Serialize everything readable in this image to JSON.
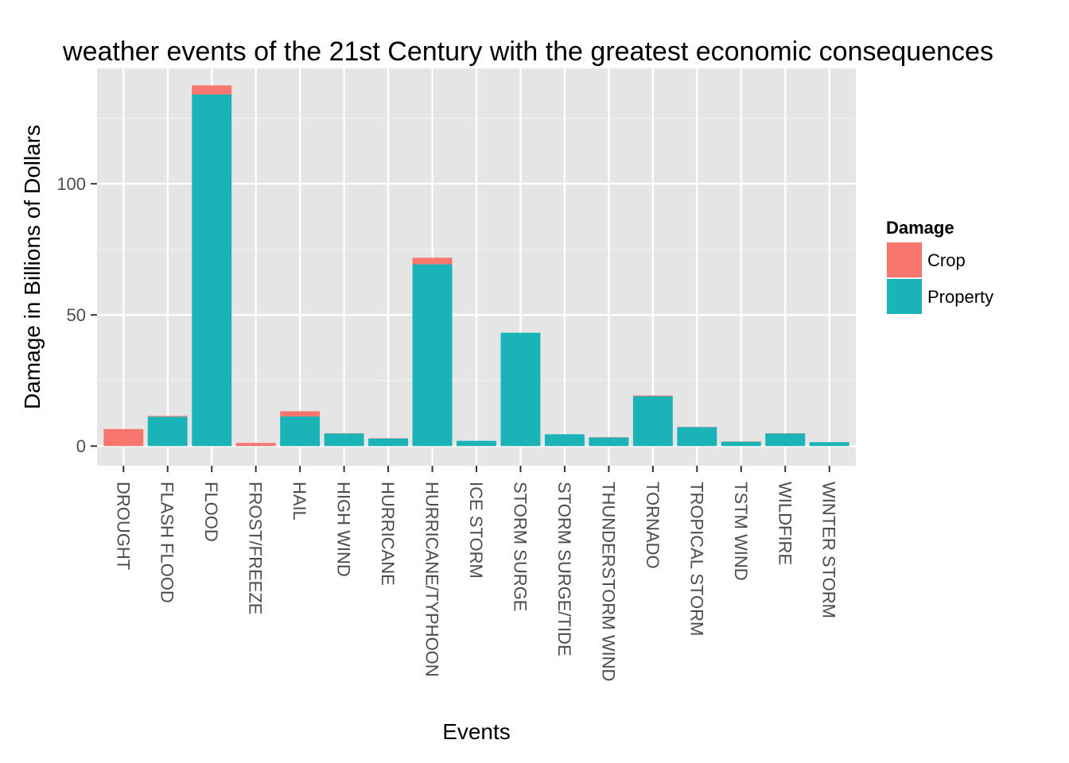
{
  "chart_data": {
    "type": "bar",
    "stacked": true,
    "title": "weather events of the 21st Century with the greatest economic consequences",
    "xlabel": "Events",
    "ylabel": "Damage in Billions of Dollars",
    "ylim": [
      -7.5,
      144
    ],
    "yticks": [
      0,
      50,
      100
    ],
    "grid": true,
    "legend_position": "right",
    "legend_title": "Damage",
    "categories": [
      "DROUGHT",
      "FLASH FLOOD",
      "FLOOD",
      "FROST/FREEZE",
      "HAIL",
      "HIGH WIND",
      "HURRICANE",
      "HURRICANE/TYPHOON",
      "ICE STORM",
      "STORM SURGE",
      "STORM SURGE/TIDE",
      "THUNDERSTORM WIND",
      "TORNADO",
      "TROPICAL STORM",
      "TSTM WIND",
      "WILDFIRE",
      "WINTER STORM"
    ],
    "series": [
      {
        "name": "Crop",
        "color": "#F8766D",
        "values": [
          6.5,
          0.3,
          3.5,
          1.2,
          2.0,
          0.1,
          0.1,
          2.5,
          0.0,
          0.0,
          0.0,
          0.1,
          0.3,
          0.1,
          0.1,
          0.1,
          0.0
        ]
      },
      {
        "name": "Property",
        "color": "#19B3B8",
        "values": [
          0.0,
          11.2,
          134.0,
          0.0,
          11.3,
          4.8,
          2.9,
          69.3,
          2.0,
          43.2,
          4.5,
          3.3,
          19.0,
          7.2,
          1.7,
          4.8,
          1.5
        ]
      }
    ]
  }
}
